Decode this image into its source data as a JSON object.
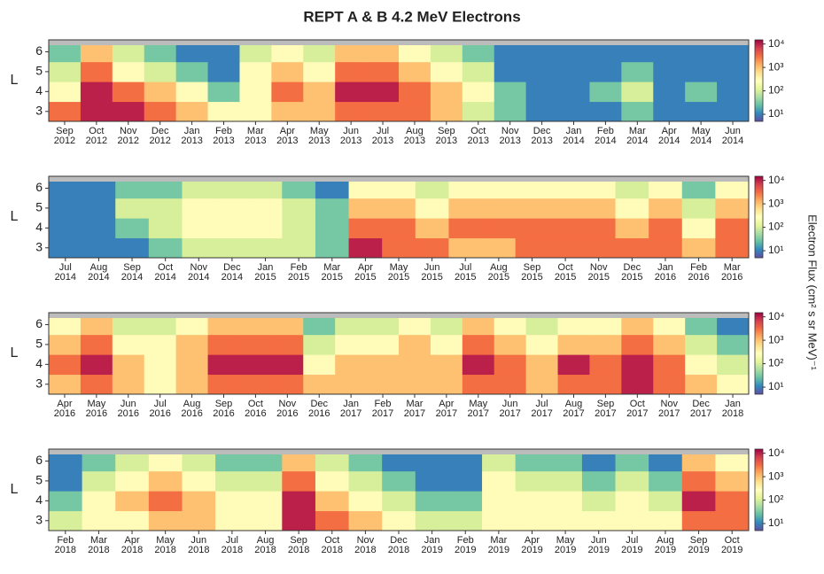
{
  "chart_data": {
    "type": "heatmap",
    "title": "REPT A & B    4.2 MeV Electrons",
    "ylabel": "L",
    "zlabel": "Electron Flux (cm² s sr MeV)⁻¹",
    "log_z": true,
    "zlim": [
      5,
      15000
    ],
    "zticks": [
      {
        "value": 10,
        "label": "10¹"
      },
      {
        "value": 100,
        "label": "10²"
      },
      {
        "value": 1000,
        "label": "10³"
      },
      {
        "value": 10000,
        "label": "10⁴"
      }
    ],
    "colormap": [
      "#5e4fa2",
      "#3288bd",
      "#66c2a5",
      "#abdda4",
      "#e6f598",
      "#ffffbf",
      "#fee08b",
      "#fdae61",
      "#f46d43",
      "#d53e4f",
      "#9e0142"
    ],
    "panels": [
      {
        "x": [
          "Sep 2012",
          "Oct 2012",
          "Nov 2012",
          "Dec 2012",
          "Jan 2013",
          "Feb 2013",
          "Mar 2013",
          "Apr 2013",
          "May 2013",
          "Jun 2013",
          "Jul 2013",
          "Aug 2013",
          "Sep 2013",
          "Oct 2013",
          "Nov 2013",
          "Dec 2013",
          "Jan 2014",
          "Feb 2014",
          "Mar 2014",
          "Apr 2014",
          "May 2014",
          "Jun 2014"
        ],
        "y": [
          3,
          4,
          5,
          6
        ],
        "ylim": [
          2.5,
          6.6
        ],
        "yticks": [
          3,
          4,
          5,
          6
        ],
        "z": [
          [
            3000,
            10000,
            10000,
            3000,
            1000,
            300,
            300,
            1000,
            1000,
            3000,
            3000,
            3000,
            1000,
            100,
            30,
            10,
            10,
            10,
            30,
            10,
            10,
            10
          ],
          [
            300,
            10000,
            3000,
            1000,
            300,
            30,
            300,
            3000,
            1000,
            10000,
            10000,
            3000,
            1000,
            300,
            30,
            10,
            10,
            30,
            100,
            10,
            30,
            10
          ],
          [
            100,
            3000,
            300,
            100,
            30,
            10,
            300,
            1000,
            300,
            3000,
            3000,
            1000,
            300,
            100,
            10,
            10,
            10,
            10,
            30,
            10,
            10,
            10
          ],
          [
            30,
            1000,
            100,
            30,
            10,
            10,
            100,
            300,
            100,
            1000,
            1000,
            300,
            100,
            30,
            10,
            10,
            10,
            10,
            10,
            10,
            10,
            10
          ]
        ]
      },
      {
        "x": [
          "Jul 2014",
          "Aug 2014",
          "Sep 2014",
          "Oct 2014",
          "Nov 2014",
          "Dec 2014",
          "Jan 2015",
          "Feb 2015",
          "Mar 2015",
          "Apr 2015",
          "May 2015",
          "Jun 2015",
          "Jul 2015",
          "Aug 2015",
          "Sep 2015",
          "Oct 2015",
          "Nov 2015",
          "Dec 2015",
          "Jan 2016",
          "Feb 2016",
          "Mar 2016"
        ],
        "y": [
          3,
          4,
          5,
          6
        ],
        "ylim": [
          2.5,
          6.6
        ],
        "yticks": [
          3,
          4,
          5,
          6
        ],
        "z": [
          [
            10,
            10,
            10,
            30,
            100,
            100,
            100,
            100,
            30,
            10000,
            3000,
            3000,
            1000,
            1000,
            3000,
            3000,
            3000,
            3000,
            3000,
            1000,
            3000
          ],
          [
            10,
            10,
            30,
            100,
            300,
            300,
            300,
            100,
            30,
            3000,
            3000,
            1000,
            3000,
            3000,
            3000,
            3000,
            3000,
            1000,
            3000,
            300,
            3000
          ],
          [
            10,
            10,
            100,
            100,
            300,
            300,
            300,
            100,
            30,
            1000,
            1000,
            300,
            1000,
            1000,
            1000,
            1000,
            1000,
            300,
            1000,
            100,
            1000
          ],
          [
            10,
            10,
            30,
            30,
            100,
            100,
            100,
            30,
            10,
            300,
            300,
            100,
            300,
            300,
            300,
            300,
            300,
            100,
            300,
            30,
            300
          ]
        ]
      },
      {
        "x": [
          "Apr 2016",
          "May 2016",
          "Jun 2016",
          "Jul 2016",
          "Aug 2016",
          "Sep 2016",
          "Oct 2016",
          "Nov 2016",
          "Dec 2016",
          "Jan 2017",
          "Feb 2017",
          "Mar 2017",
          "Apr 2017",
          "May 2017",
          "Jun 2017",
          "Jul 2017",
          "Aug 2017",
          "Sep 2017",
          "Oct 2017",
          "Nov 2017",
          "Dec 2017",
          "Jan 2018"
        ],
        "y": [
          3,
          4,
          5,
          6
        ],
        "ylim": [
          2.5,
          6.6
        ],
        "yticks": [
          3,
          4,
          5,
          6
        ],
        "z": [
          [
            1000,
            3000,
            1000,
            300,
            1000,
            3000,
            3000,
            3000,
            1000,
            1000,
            1000,
            1000,
            1000,
            3000,
            3000,
            1000,
            3000,
            3000,
            10000,
            3000,
            1000,
            300
          ],
          [
            3000,
            10000,
            1000,
            300,
            1000,
            10000,
            10000,
            10000,
            300,
            1000,
            1000,
            1000,
            1000,
            10000,
            3000,
            1000,
            10000,
            3000,
            10000,
            3000,
            300,
            100
          ],
          [
            1000,
            3000,
            300,
            300,
            1000,
            3000,
            3000,
            3000,
            100,
            300,
            300,
            1000,
            300,
            3000,
            1000,
            300,
            1000,
            1000,
            3000,
            1000,
            100,
            30
          ],
          [
            300,
            1000,
            100,
            100,
            300,
            1000,
            1000,
            1000,
            30,
            100,
            100,
            300,
            100,
            1000,
            300,
            100,
            300,
            300,
            1000,
            300,
            30,
            10
          ]
        ]
      },
      {
        "x": [
          "Feb 2018",
          "Mar 2018",
          "Apr 2018",
          "May 2018",
          "Jun 2018",
          "Jul 2018",
          "Aug 2018",
          "Sep 2018",
          "Oct 2018",
          "Nov 2018",
          "Dec 2018",
          "Jan 2019",
          "Feb 2019",
          "Mar 2019",
          "Apr 2019",
          "May 2019",
          "Jun 2019",
          "Jul 2019",
          "Aug 2019",
          "Sep 2019",
          "Oct 2019"
        ],
        "y": [
          3,
          4,
          5,
          6
        ],
        "ylim": [
          2.5,
          6.6
        ],
        "yticks": [
          3,
          4,
          5,
          6
        ],
        "z": [
          [
            100,
            300,
            300,
            1000,
            1000,
            300,
            300,
            10000,
            3000,
            1000,
            300,
            100,
            100,
            300,
            300,
            300,
            300,
            300,
            300,
            3000,
            3000
          ],
          [
            30,
            300,
            1000,
            3000,
            1000,
            300,
            300,
            10000,
            1000,
            300,
            100,
            30,
            30,
            300,
            300,
            300,
            100,
            300,
            100,
            10000,
            3000
          ],
          [
            10,
            100,
            300,
            1000,
            300,
            100,
            100,
            3000,
            300,
            100,
            30,
            10,
            10,
            300,
            100,
            100,
            30,
            100,
            30,
            3000,
            1000
          ],
          [
            10,
            30,
            100,
            300,
            100,
            30,
            30,
            1000,
            100,
            30,
            10,
            10,
            10,
            100,
            30,
            30,
            10,
            30,
            10,
            1000,
            300
          ]
        ]
      }
    ]
  }
}
